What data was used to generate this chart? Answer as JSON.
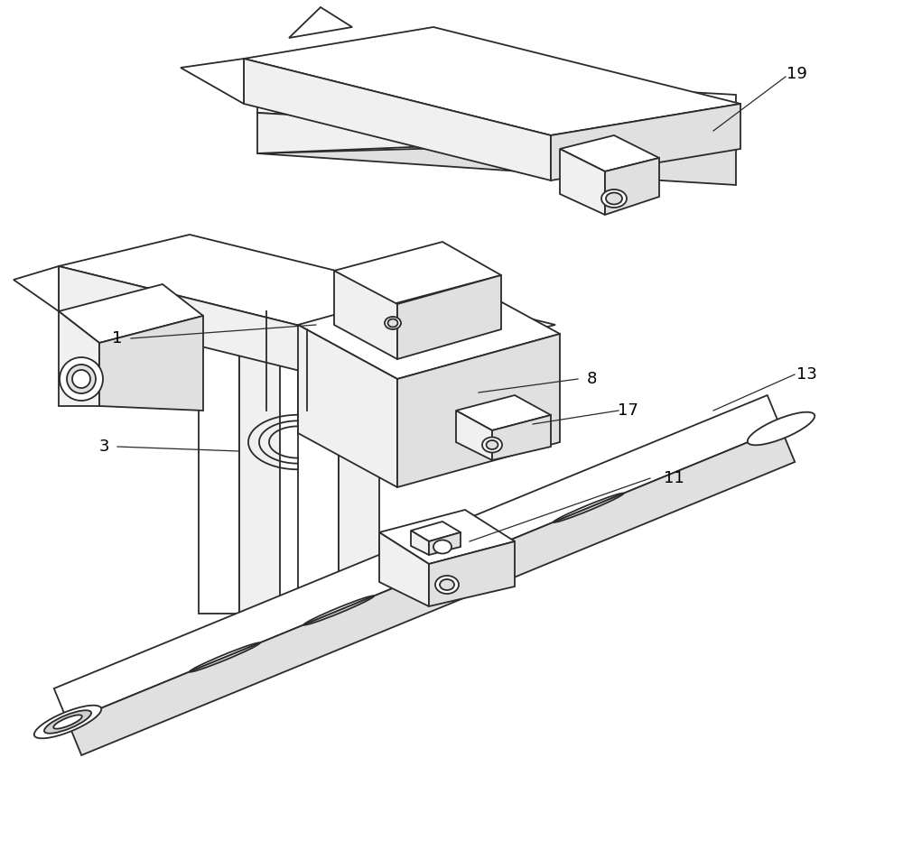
{
  "bg_color": "#ffffff",
  "line_color": "#2a2a2a",
  "face_light": "#ffffff",
  "face_mid": "#f0f0f0",
  "face_dark": "#e0e0e0",
  "face_darker": "#d0d0d0",
  "label_color": "#000000",
  "label_fs": 13,
  "lw": 1.3,
  "figsize": [
    10.0,
    9.52
  ],
  "dpi": 100
}
